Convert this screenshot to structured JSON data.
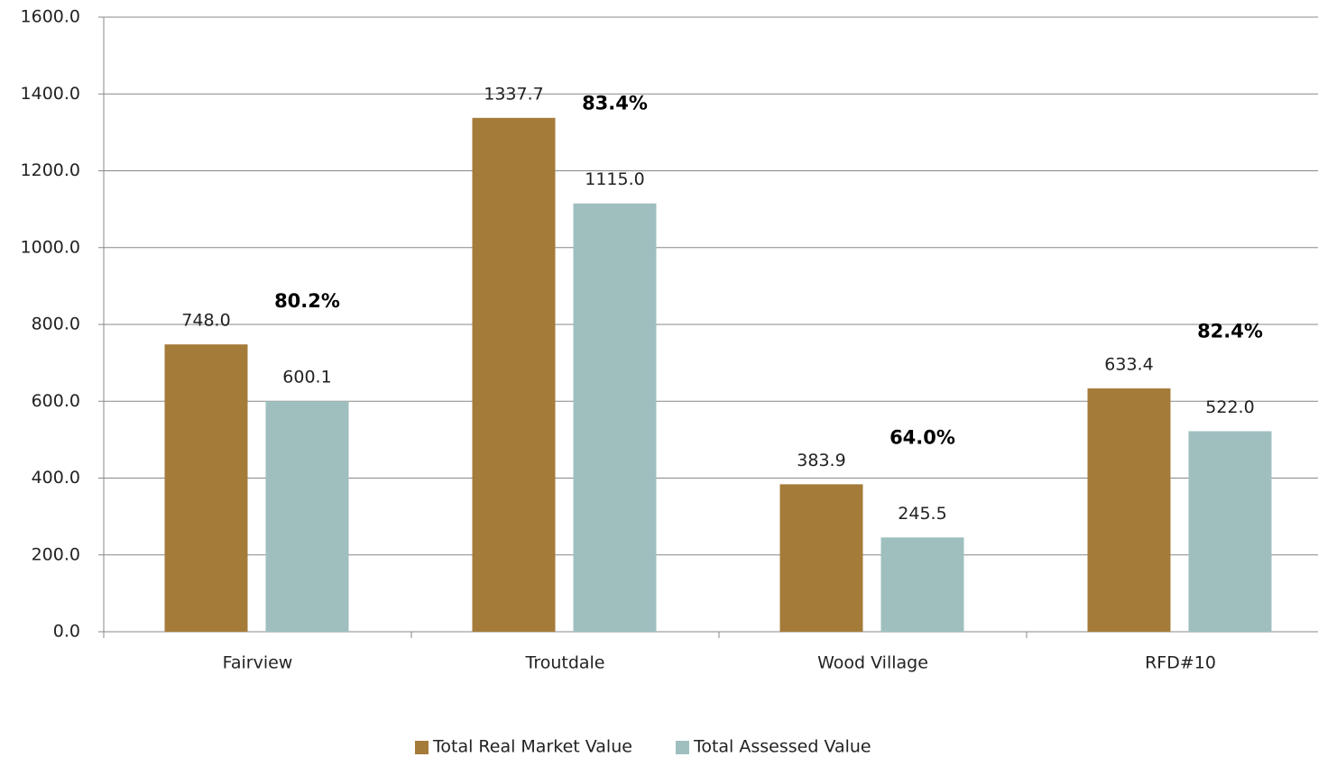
{
  "chart_data": {
    "type": "bar",
    "categories": [
      "Fairview",
      "Troutdale",
      "Wood Village",
      "RFD#10"
    ],
    "series": [
      {
        "name": "Total Real Market Value",
        "color": "#a57b3a",
        "values": [
          748.0,
          1337.7,
          383.9,
          633.4
        ],
        "value_labels": [
          "748.0",
          "1337.7",
          "383.9",
          "633.4"
        ]
      },
      {
        "name": "Total Assessed Value",
        "color": "#9fbfbf",
        "values": [
          600.1,
          1115.0,
          245.5,
          522.0
        ],
        "value_labels": [
          "600.1",
          "1115.0",
          "245.5",
          "522.0"
        ]
      }
    ],
    "ratio_values": [
      80.2,
      83.4,
      64.0,
      82.4
    ],
    "ratio_labels": [
      "80.2%",
      "83.4%",
      "64.0%",
      "82.4%"
    ],
    "ylim": [
      0,
      1600
    ],
    "yticks": [
      {
        "value": 0,
        "label": "0.0"
      },
      {
        "value": 200,
        "label": "200.0"
      },
      {
        "value": 400,
        "label": "400.0"
      },
      {
        "value": 600,
        "label": "600.0"
      },
      {
        "value": 800,
        "label": "800.0"
      },
      {
        "value": 1000,
        "label": "1000.0"
      },
      {
        "value": 1200,
        "label": "1200.0"
      },
      {
        "value": 1400,
        "label": "1400.0"
      },
      {
        "value": 1600,
        "label": "1600.0"
      }
    ],
    "grid": true,
    "legend": "bottom"
  }
}
